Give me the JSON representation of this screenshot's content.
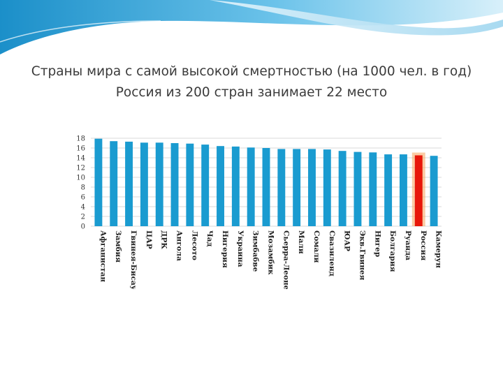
{
  "slide": {
    "title": "Страны мира с самой высокой смертностью (на 1000 чел. в год) Россия из 200 стран занимает 22 место"
  },
  "colors": {
    "bar": "#1a9bd0",
    "highlight": "#e8170a",
    "highlight_glow": "#f7a35a",
    "grid": "#d9d9d9",
    "swoosh_dark": "#1b8fc9",
    "swoosh_light": "#bfe4f5"
  },
  "chart_data": {
    "type": "bar",
    "title": "",
    "xlabel": "",
    "ylabel": "",
    "ylim": [
      0,
      18
    ],
    "yticks": [
      0,
      2,
      4,
      6,
      8,
      10,
      12,
      14,
      16,
      18
    ],
    "grid": true,
    "categories": [
      "Афганистан",
      "Замбия",
      "Гвинея-Бисау",
      "ЦАР",
      "ДРК",
      "Ангола",
      "Лесото",
      "Чад",
      "Нигерия",
      "Украина",
      "Зимбабве",
      "Мозамбик",
      "Сьерра-Леоне",
      "Мали",
      "Сомали",
      "Свазиленд",
      "ЮАР",
      "Экв.Гвинея",
      "Нигер",
      "Болгария",
      "Руанда",
      "Россия",
      "Камерун"
    ],
    "values": [
      17.9,
      17.4,
      17.3,
      17.1,
      17.1,
      17.0,
      16.9,
      16.7,
      16.4,
      16.3,
      16.1,
      16.0,
      15.8,
      15.8,
      15.8,
      15.7,
      15.4,
      15.2,
      15.1,
      14.7,
      14.7,
      14.5,
      14.4
    ],
    "highlight": "Россия"
  }
}
